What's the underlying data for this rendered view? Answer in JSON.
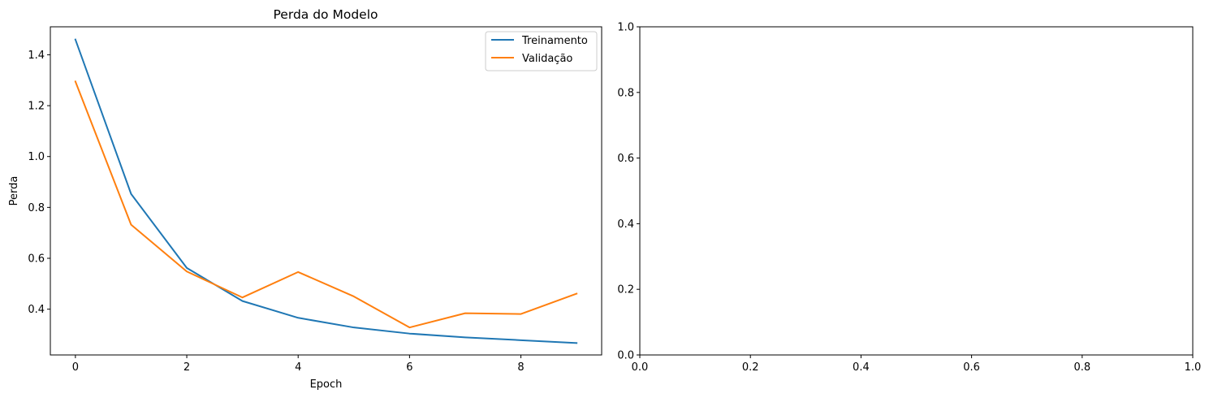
{
  "chart_data": [
    {
      "type": "line",
      "title": "Perda do Modelo",
      "xlabel": "Epoch",
      "ylabel": "Perda",
      "x": [
        0,
        1,
        2,
        3,
        4,
        5,
        6,
        7,
        8,
        9
      ],
      "xlim": [
        -0.45,
        9.45
      ],
      "ylim": [
        0.22,
        1.51
      ],
      "xticks": [
        0,
        2,
        4,
        6,
        8
      ],
      "yticks": [
        0.4,
        0.6,
        0.8,
        1.0,
        1.2,
        1.4
      ],
      "xtick_labels": [
        "0",
        "2",
        "4",
        "6",
        "8"
      ],
      "ytick_labels": [
        "0.4",
        "0.6",
        "0.8",
        "1.0",
        "1.2",
        "1.4"
      ],
      "grid": false,
      "legend_position": "top-right",
      "series": [
        {
          "name": "Treinamento",
          "color": "#1f77b4",
          "values": [
            1.46,
            0.853,
            0.562,
            0.432,
            0.366,
            0.328,
            0.304,
            0.289,
            0.278,
            0.267
          ]
        },
        {
          "name": "Validação",
          "color": "#ff7f0e",
          "values": [
            1.295,
            0.732,
            0.548,
            0.446,
            0.546,
            0.45,
            0.328,
            0.384,
            0.381,
            0.461
          ]
        }
      ]
    },
    {
      "type": "line",
      "title": "",
      "xlabel": "",
      "ylabel": "",
      "xlim": [
        0,
        1
      ],
      "ylim": [
        0,
        1
      ],
      "xticks": [
        0,
        0.2,
        0.4,
        0.6,
        0.8,
        1.0
      ],
      "yticks": [
        0,
        0.2,
        0.4,
        0.6,
        0.8,
        1.0
      ],
      "xtick_labels": [
        "0.0",
        "0.2",
        "0.4",
        "0.6",
        "0.8",
        "1.0"
      ],
      "ytick_labels": [
        "0.0",
        "0.2",
        "0.4",
        "0.6",
        "0.8",
        "1.0"
      ],
      "grid": false,
      "series": []
    }
  ]
}
